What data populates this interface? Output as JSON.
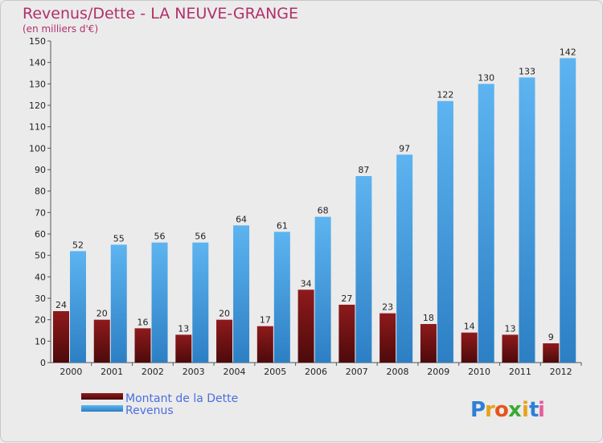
{
  "chart_data": {
    "type": "bar",
    "title": "Revenus/Dette - LA NEUVE-GRANGE",
    "subtitle": "(en milliers d'€)",
    "categories": [
      "2000",
      "2001",
      "2002",
      "2003",
      "2004",
      "2005",
      "2006",
      "2007",
      "2008",
      "2009",
      "2010",
      "2011",
      "2012"
    ],
    "series": [
      {
        "name": "Montant de la Dette",
        "color": "#7a1416",
        "values": [
          24,
          20,
          16,
          13,
          20,
          17,
          34,
          27,
          23,
          18,
          14,
          13,
          9
        ]
      },
      {
        "name": "Revenus",
        "color": "#3f9be0",
        "values": [
          52,
          55,
          56,
          56,
          64,
          61,
          68,
          87,
          97,
          122,
          130,
          133,
          142
        ]
      }
    ],
    "ylim": [
      0,
      150
    ],
    "yticks": [
      0,
      10,
      20,
      30,
      40,
      50,
      60,
      70,
      80,
      90,
      100,
      110,
      120,
      130,
      140,
      150
    ],
    "grid": false,
    "legend_position": "bottom-left"
  },
  "brand": {
    "letters": [
      "P",
      "r",
      "o",
      "x",
      "i",
      "t",
      "i"
    ],
    "colors": [
      "#2e7fd6",
      "#e8a21a",
      "#e8541a",
      "#3aaa35",
      "#e8a21a",
      "#2e7fd6",
      "#e85a9a"
    ]
  }
}
